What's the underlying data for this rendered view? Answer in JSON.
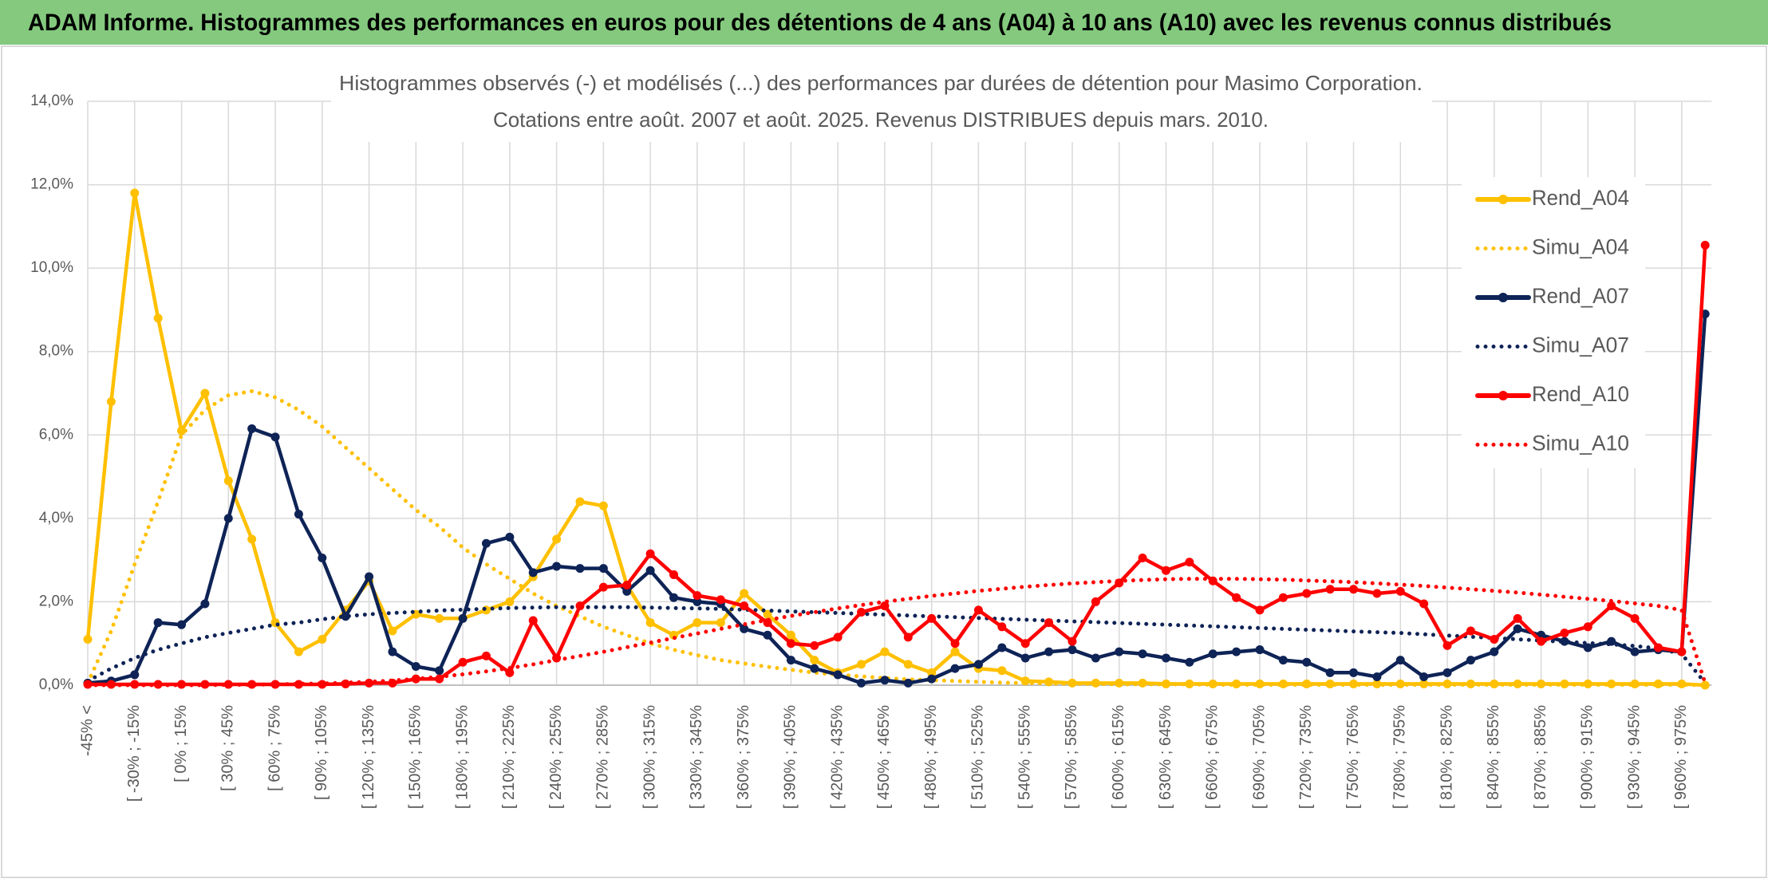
{
  "header": {
    "title": "ADAM Informe. Histogrammes des performances en euros pour des détentions de 4 ans (A04) à 10 ans (A10) avec les revenus connus distribués"
  },
  "chart_data": {
    "type": "line",
    "title": "Histogrammes observés (-) et modélisés (...) des performances par durées de détention pour Masimo Corporation.",
    "subtitle": "Cotations entre août. 2007 et août. 2025. Revenus DISTRIBUES depuis mars. 2010.",
    "categories": [
      "-45% <",
      null,
      "[ -30% ; -15%",
      null,
      "[ 0% ; 15%",
      null,
      "[ 30% ; 45%",
      null,
      "[ 60% ; 75%",
      null,
      "[ 90% ; 105%",
      null,
      "[ 120% ; 135%",
      null,
      "[ 150% ; 165%",
      null,
      "[ 180% ; 195%",
      null,
      "[ 210% ; 225%",
      null,
      "[ 240% ; 255%",
      null,
      "[ 270% ; 285%",
      null,
      "[ 300% ; 315%",
      null,
      "[ 330% ; 345%",
      null,
      "[ 360% ; 375%",
      null,
      "[ 390% ; 405%",
      null,
      "[ 420% ; 435%",
      null,
      "[ 450% ; 465%",
      null,
      "[ 480% ; 495%",
      null,
      "[ 510% ; 525%",
      null,
      "[ 540% ; 555%",
      null,
      "[ 570% ; 585%",
      null,
      "[ 600% ; 615%",
      null,
      "[ 630% ; 645%",
      null,
      "[ 660% ; 675%",
      null,
      "[ 690% ; 705%",
      null,
      "[ 720% ; 735%",
      null,
      "[ 750% ; 765%",
      null,
      "[ 780% ; 795%",
      null,
      "[ 810% ; 825%",
      null,
      "[ 840% ; 855%",
      null,
      "[ 870% ; 885%",
      null,
      "[ 900% ; 915%",
      null,
      "[ 930% ; 945%",
      null,
      "[ 960% ; 975%",
      null
    ],
    "series": [
      {
        "name": "Rend_A04",
        "color": "#FFC000",
        "style": "solid",
        "markers": true,
        "values": [
          1.1,
          6.8,
          11.8,
          8.8,
          6.1,
          7.0,
          4.9,
          3.5,
          1.5,
          0.8,
          1.1,
          1.8,
          2.5,
          1.3,
          1.7,
          1.6,
          1.6,
          1.8,
          2.0,
          2.6,
          3.5,
          4.4,
          4.3,
          2.4,
          1.5,
          1.2,
          1.5,
          1.5,
          2.2,
          1.7,
          1.2,
          0.6,
          0.3,
          0.5,
          0.8,
          0.5,
          0.3,
          0.8,
          0.4,
          0.35,
          0.1,
          0.08,
          0.05,
          0.05,
          0.05,
          0.05,
          0.03,
          0.03,
          0.03,
          0.03,
          0.03,
          0.03,
          0.03,
          0.03,
          0.03,
          0.03,
          0.03,
          0.03,
          0.03,
          0.03,
          0.03,
          0.03,
          0.03,
          0.03,
          0.03,
          0.03,
          0.03,
          0.03,
          0.03,
          0
        ]
      },
      {
        "name": "Simu_A04",
        "color": "#FFC000",
        "style": "dotted",
        "markers": false,
        "values": [
          0.05,
          1.3,
          2.9,
          4.4,
          6.0,
          6.6,
          6.95,
          7.05,
          6.9,
          6.6,
          6.2,
          5.7,
          5.2,
          4.7,
          4.2,
          3.8,
          3.3,
          2.9,
          2.55,
          2.2,
          1.9,
          1.65,
          1.4,
          1.2,
          1.0,
          0.85,
          0.72,
          0.6,
          0.52,
          0.44,
          0.37,
          0.3,
          0.25,
          0.21,
          0.17,
          0.14,
          0.12,
          0.1,
          0.08,
          0.06,
          0.05,
          0.04,
          0.03,
          0.03,
          0.02,
          0.02,
          0.02,
          0.02,
          0.01,
          0.01,
          0.01,
          0.01,
          0.01,
          0.01,
          0.01,
          0.01,
          0.01,
          0.01,
          0.01,
          0.01,
          0.01,
          0.01,
          0.01,
          0.01,
          0.01,
          0.01,
          0.01,
          0.01,
          0.01,
          0
        ]
      },
      {
        "name": "Rend_A07",
        "color": "#0E2356",
        "style": "solid",
        "markers": true,
        "values": [
          0.05,
          0.1,
          0.25,
          1.5,
          1.45,
          1.95,
          4.0,
          6.15,
          5.95,
          4.1,
          3.05,
          1.65,
          2.6,
          0.8,
          0.45,
          0.35,
          1.6,
          3.4,
          3.55,
          2.7,
          2.85,
          2.8,
          2.8,
          2.25,
          2.75,
          2.1,
          2.0,
          1.95,
          1.35,
          1.2,
          0.6,
          0.4,
          0.25,
          0.05,
          0.12,
          0.05,
          0.15,
          0.4,
          0.5,
          0.9,
          0.65,
          0.8,
          0.85,
          0.65,
          0.8,
          0.75,
          0.65,
          0.55,
          0.75,
          0.8,
          0.85,
          0.6,
          0.55,
          0.3,
          0.3,
          0.2,
          0.6,
          0.2,
          0.3,
          0.6,
          0.8,
          1.35,
          1.2,
          1.05,
          0.9,
          1.05,
          0.8,
          0.85,
          0.8,
          8.9
        ]
      },
      {
        "name": "Simu_A07",
        "color": "#0E2356",
        "style": "dotted",
        "markers": false,
        "values": [
          0.1,
          0.4,
          0.65,
          0.85,
          1.0,
          1.15,
          1.25,
          1.35,
          1.45,
          1.5,
          1.58,
          1.65,
          1.7,
          1.73,
          1.76,
          1.79,
          1.81,
          1.83,
          1.85,
          1.86,
          1.87,
          1.87,
          1.87,
          1.87,
          1.86,
          1.85,
          1.84,
          1.83,
          1.81,
          1.79,
          1.77,
          1.75,
          1.73,
          1.71,
          1.69,
          1.67,
          1.65,
          1.63,
          1.61,
          1.59,
          1.57,
          1.55,
          1.53,
          1.51,
          1.49,
          1.47,
          1.45,
          1.43,
          1.41,
          1.39,
          1.37,
          1.35,
          1.33,
          1.31,
          1.29,
          1.27,
          1.25,
          1.22,
          1.19,
          1.16,
          1.13,
          1.1,
          1.07,
          1.04,
          1.01,
          0.98,
          0.94,
          0.88,
          0.75,
          0.05
        ]
      },
      {
        "name": "Rend_A10",
        "color": "#FF0000",
        "style": "solid",
        "markers": true,
        "values": [
          0.02,
          0.02,
          0.02,
          0.02,
          0.02,
          0.02,
          0.02,
          0.02,
          0.02,
          0.02,
          0.02,
          0.03,
          0.05,
          0.05,
          0.15,
          0.15,
          0.55,
          0.7,
          0.3,
          1.55,
          0.65,
          1.9,
          2.35,
          2.4,
          3.15,
          2.65,
          2.15,
          2.05,
          1.9,
          1.5,
          1.0,
          0.95,
          1.15,
          1.75,
          1.9,
          1.15,
          1.6,
          1.0,
          1.8,
          1.4,
          1.0,
          1.5,
          1.05,
          2.0,
          2.45,
          3.05,
          2.75,
          2.95,
          2.5,
          2.1,
          1.8,
          2.1,
          2.2,
          2.3,
          2.3,
          2.2,
          2.25,
          1.95,
          0.95,
          1.3,
          1.1,
          1.6,
          1.05,
          1.25,
          1.4,
          1.9,
          1.6,
          0.9,
          0.8,
          10.55
        ]
      },
      {
        "name": "Simu_A10",
        "color": "#FF0000",
        "style": "dotted",
        "markers": false,
        "values": [
          0,
          0,
          0,
          0,
          0,
          0,
          0.01,
          0.01,
          0.02,
          0.03,
          0.04,
          0.06,
          0.08,
          0.11,
          0.15,
          0.2,
          0.26,
          0.33,
          0.41,
          0.5,
          0.6,
          0.7,
          0.8,
          0.91,
          1.02,
          1.13,
          1.24,
          1.35,
          1.46,
          1.56,
          1.66,
          1.75,
          1.84,
          1.92,
          2.0,
          2.07,
          2.14,
          2.2,
          2.26,
          2.31,
          2.36,
          2.4,
          2.44,
          2.47,
          2.5,
          2.52,
          2.54,
          2.55,
          2.55,
          2.55,
          2.54,
          2.53,
          2.51,
          2.49,
          2.47,
          2.44,
          2.41,
          2.38,
          2.34,
          2.3,
          2.26,
          2.22,
          2.17,
          2.12,
          2.07,
          2.02,
          1.96,
          1.9,
          1.8,
          0.05
        ]
      }
    ],
    "ylim": [
      0,
      14
    ],
    "yticks": [
      {
        "value": 0,
        "label": "0,0%"
      },
      {
        "value": 2,
        "label": "2,0%"
      },
      {
        "value": 4,
        "label": "4,0%"
      },
      {
        "value": 6,
        "label": "6,0%"
      },
      {
        "value": 8,
        "label": "8,0%"
      },
      {
        "value": 10,
        "label": "10,0%"
      },
      {
        "value": 12,
        "label": "12,0%"
      },
      {
        "value": 14,
        "label": "14,0%"
      }
    ],
    "grid": true,
    "legend": "upper right"
  }
}
